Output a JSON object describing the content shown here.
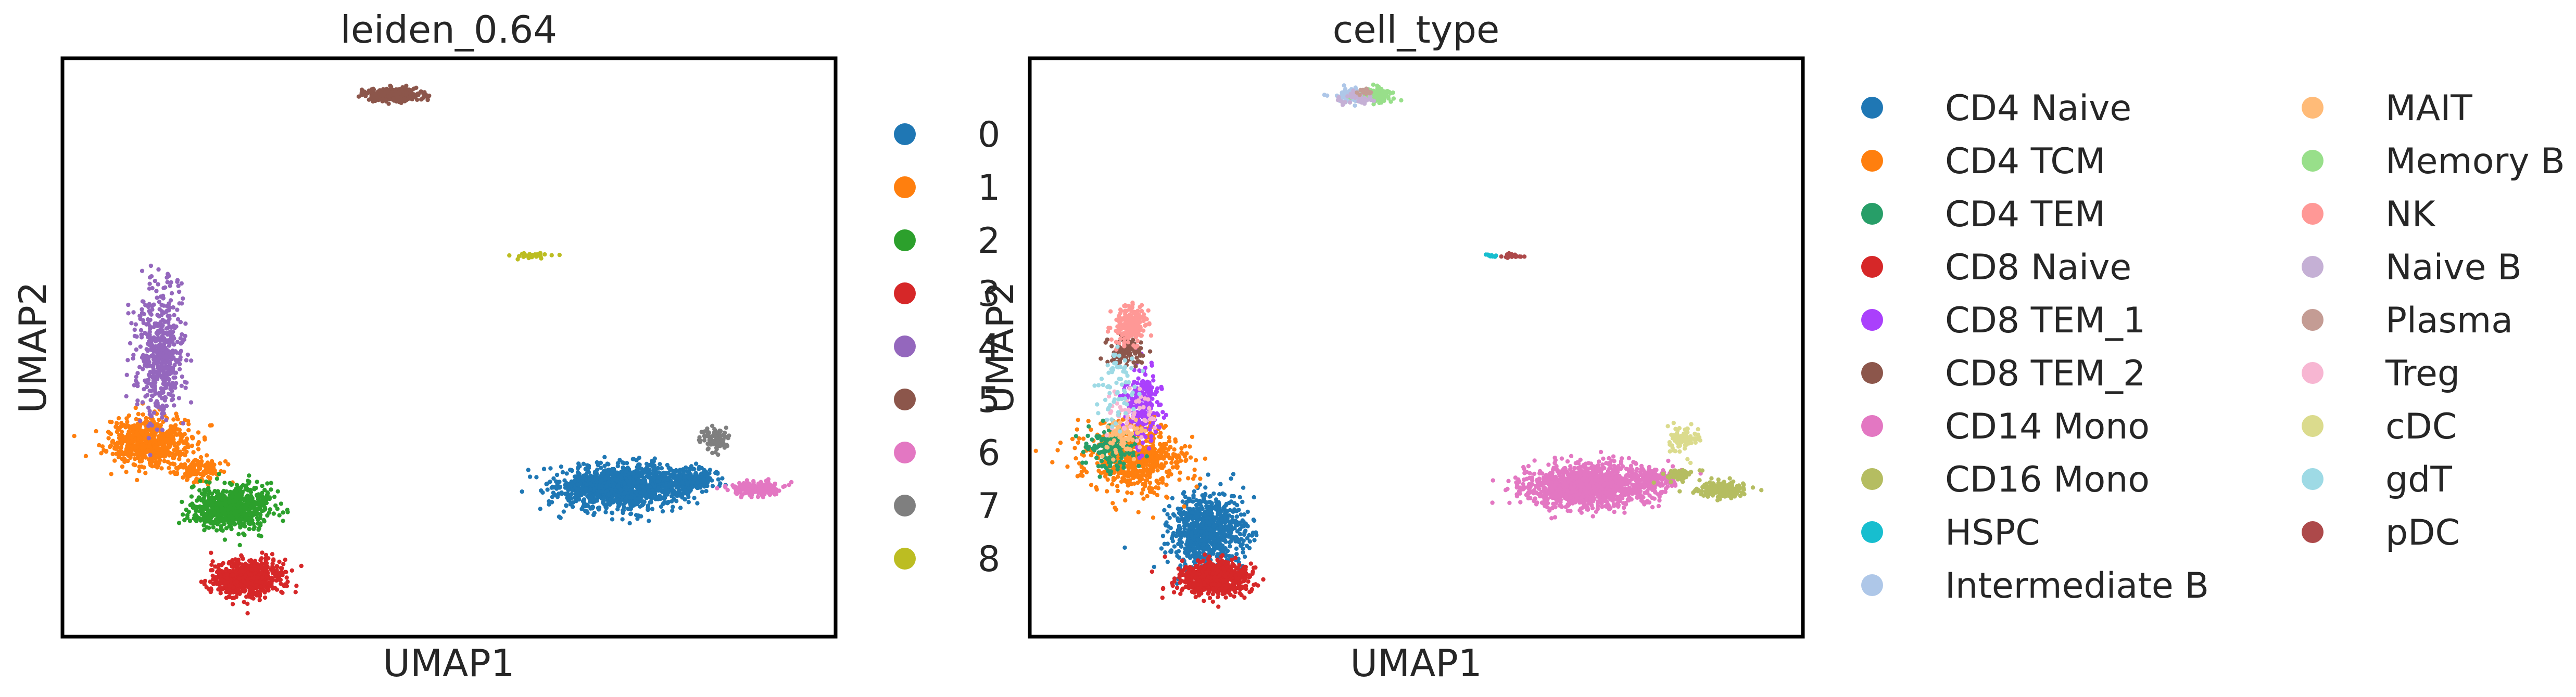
{
  "chart_data": [
    {
      "type": "scatter",
      "title": "leiden_0.64",
      "xlabel": "UMAP1",
      "ylabel": "UMAP2",
      "xlim": [
        -6,
        20
      ],
      "ylim": [
        -4,
        18
      ],
      "grid": false,
      "legend_position": "right",
      "legend_columns": 1,
      "series": [
        {
          "name": "0",
          "color": "#1f77b4",
          "clusters": [
            {
              "cx": 12.8,
              "cy": 1.7,
              "sx": 1.4,
              "sy": 0.55,
              "n": 1200
            },
            {
              "cx": 15.1,
              "cy": 2.0,
              "sx": 0.7,
              "sy": 0.3,
              "n": 220
            }
          ]
        },
        {
          "name": "1",
          "color": "#ff7f0e",
          "clusters": [
            {
              "cx": -3.1,
              "cy": 3.4,
              "sx": 0.9,
              "sy": 0.6,
              "n": 650
            },
            {
              "cx": -1.4,
              "cy": 2.3,
              "sx": 0.5,
              "sy": 0.3,
              "n": 120
            }
          ]
        },
        {
          "name": "2",
          "color": "#2ca02c",
          "clusters": [
            {
              "cx": -0.3,
              "cy": 0.9,
              "sx": 0.85,
              "sy": 0.55,
              "n": 700
            }
          ]
        },
        {
          "name": "3",
          "color": "#d62728",
          "clusters": [
            {
              "cx": 0.2,
              "cy": -1.8,
              "sx": 0.8,
              "sy": 0.45,
              "n": 650
            }
          ]
        },
        {
          "name": "4",
          "color": "#9467bd",
          "clusters": [
            {
              "cx": -2.7,
              "cy": 6.7,
              "sx": 0.55,
              "sy": 1.6,
              "n": 520
            }
          ]
        },
        {
          "name": "5",
          "color": "#8c564b",
          "clusters": [
            {
              "cx": 5.2,
              "cy": 16.6,
              "sx": 0.6,
              "sy": 0.18,
              "n": 260
            }
          ]
        },
        {
          "name": "6",
          "color": "#e377c2",
          "clusters": [
            {
              "cx": 17.3,
              "cy": 1.6,
              "sx": 0.55,
              "sy": 0.18,
              "n": 200
            }
          ]
        },
        {
          "name": "7",
          "color": "#7f7f7f",
          "clusters": [
            {
              "cx": 16.0,
              "cy": 3.5,
              "sx": 0.35,
              "sy": 0.3,
              "n": 90
            }
          ]
        },
        {
          "name": "8",
          "color": "#bcbd22",
          "clusters": [
            {
              "cx": 9.8,
              "cy": 10.5,
              "sx": 0.45,
              "sy": 0.06,
              "n": 35
            }
          ]
        }
      ]
    },
    {
      "type": "scatter",
      "title": "cell_type",
      "xlabel": "UMAP1",
      "ylabel": "UMAP2",
      "xlim": [
        -6,
        20
      ],
      "ylim": [
        -4,
        18
      ],
      "grid": false,
      "legend_position": "right",
      "legend_columns": 2,
      "series": [
        {
          "name": "CD4 Naive",
          "color": "#1f77b4",
          "clusters": [
            {
              "cx": 0.0,
              "cy": 0.0,
              "sx": 0.85,
              "sy": 0.9,
              "n": 800
            }
          ]
        },
        {
          "name": "CD4 TCM",
          "color": "#ff7f0e",
          "clusters": [
            {
              "cx": -2.5,
              "cy": 2.8,
              "sx": 1.1,
              "sy": 0.9,
              "n": 650
            }
          ]
        },
        {
          "name": "CD4 TEM",
          "color": "#279e68",
          "clusters": [
            {
              "cx": -3.3,
              "cy": 3.2,
              "sx": 0.6,
              "sy": 0.6,
              "n": 150
            }
          ]
        },
        {
          "name": "CD8 Naive",
          "color": "#d62728",
          "clusters": [
            {
              "cx": 0.2,
              "cy": -1.8,
              "sx": 0.8,
              "sy": 0.45,
              "n": 650
            }
          ]
        },
        {
          "name": "CD8 TEM_1",
          "color": "#aa40fc",
          "clusters": [
            {
              "cx": -2.2,
              "cy": 4.8,
              "sx": 0.4,
              "sy": 0.9,
              "n": 220
            }
          ]
        },
        {
          "name": "CD8 TEM_2",
          "color": "#8c564b",
          "clusters": [
            {
              "cx": -2.8,
              "cy": 6.8,
              "sx": 0.4,
              "sy": 0.35,
              "n": 110
            }
          ]
        },
        {
          "name": "CD14 Mono",
          "color": "#e377c2",
          "clusters": [
            {
              "cx": 12.8,
              "cy": 1.7,
              "sx": 1.4,
              "sy": 0.55,
              "n": 1200
            },
            {
              "cx": 15.0,
              "cy": 2.0,
              "sx": 0.6,
              "sy": 0.3,
              "n": 150
            }
          ]
        },
        {
          "name": "CD16 Mono",
          "color": "#b5bd61",
          "clusters": [
            {
              "cx": 17.3,
              "cy": 1.6,
              "sx": 0.55,
              "sy": 0.18,
              "n": 200
            },
            {
              "cx": 15.9,
              "cy": 2.1,
              "sx": 0.4,
              "sy": 0.2,
              "n": 60
            }
          ]
        },
        {
          "name": "HSPC",
          "color": "#17becf",
          "clusters": [
            {
              "cx": 9.5,
              "cy": 10.5,
              "sx": 0.15,
              "sy": 0.05,
              "n": 10
            }
          ]
        },
        {
          "name": "Intermediate B",
          "color": "#aec7e8",
          "clusters": [
            {
              "cx": 4.9,
              "cy": 16.6,
              "sx": 0.35,
              "sy": 0.18,
              "n": 130
            }
          ]
        },
        {
          "name": "MAIT",
          "color": "#ffbb78",
          "clusters": [
            {
              "cx": -2.9,
              "cy": 3.6,
              "sx": 0.4,
              "sy": 0.4,
              "n": 70
            }
          ]
        },
        {
          "name": "Memory B",
          "color": "#98df8a",
          "clusters": [
            {
              "cx": 5.7,
              "cy": 16.6,
              "sx": 0.35,
              "sy": 0.18,
              "n": 130
            }
          ]
        },
        {
          "name": "NK",
          "color": "#ff9896",
          "clusters": [
            {
              "cx": -2.6,
              "cy": 7.9,
              "sx": 0.35,
              "sy": 0.5,
              "n": 220
            }
          ]
        },
        {
          "name": "Naive B",
          "color": "#c5b0d5",
          "clusters": [
            {
              "cx": 5.0,
              "cy": 16.5,
              "sx": 0.5,
              "sy": 0.15,
              "n": 40
            }
          ]
        },
        {
          "name": "Plasma",
          "color": "#c49c94",
          "clusters": [
            {
              "cx": 5.3,
              "cy": 16.7,
              "sx": 0.2,
              "sy": 0.08,
              "n": 12
            }
          ]
        },
        {
          "name": "Treg",
          "color": "#f7b6d2",
          "clusters": [
            {
              "cx": -2.6,
              "cy": 4.5,
              "sx": 0.6,
              "sy": 0.8,
              "n": 50
            }
          ]
        },
        {
          "name": "cDC",
          "color": "#dbdb8d",
          "clusters": [
            {
              "cx": 16.0,
              "cy": 3.5,
              "sx": 0.35,
              "sy": 0.3,
              "n": 90
            }
          ]
        },
        {
          "name": "gdT",
          "color": "#9edae5",
          "clusters": [
            {
              "cx": -3.0,
              "cy": 5.5,
              "sx": 0.5,
              "sy": 1.0,
              "n": 70
            }
          ]
        },
        {
          "name": "pDC",
          "color": "#ad494a",
          "clusters": [
            {
              "cx": 10.2,
              "cy": 10.5,
              "sx": 0.25,
              "sy": 0.06,
              "n": 22
            }
          ]
        }
      ]
    }
  ]
}
